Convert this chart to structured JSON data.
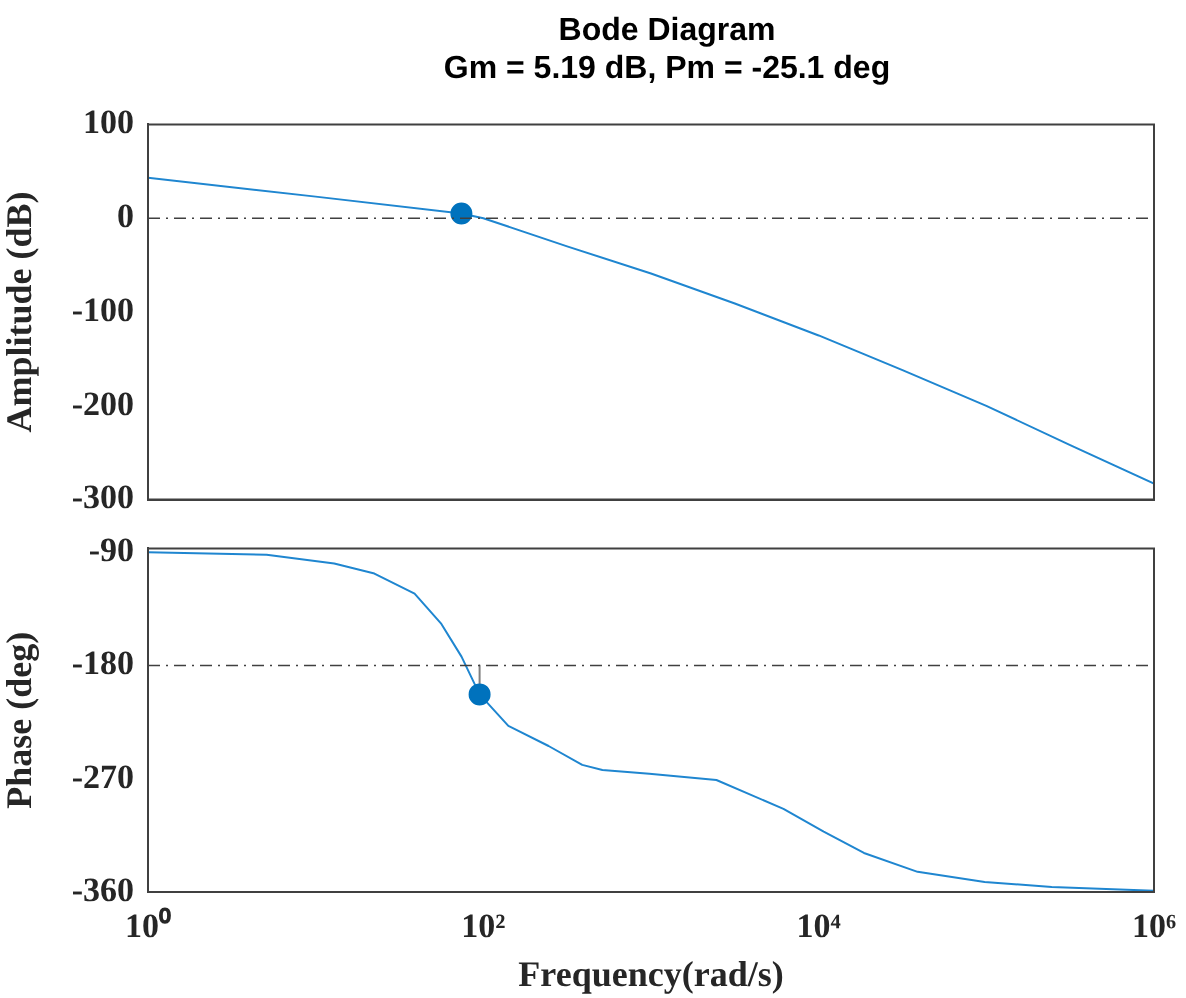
{
  "chart_data": [
    {
      "type": "line",
      "title": "Bode Diagram",
      "subtitle": "Gm = 5.19 dB, Pm = -25.1 deg",
      "ylabel": "Amplitude (dB)",
      "log": "x",
      "grid": false,
      "legend": false,
      "tick_labels": "y",
      "xlim": [
        1,
        1000000
      ],
      "xticks": [
        {
          "value": 1,
          "label": null
        },
        {
          "value": 100,
          "label": null
        },
        {
          "value": 10000,
          "label": null
        },
        {
          "value": 1000000,
          "label": null
        }
      ],
      "ylim": [
        -300,
        100
      ],
      "yticks": [
        -300,
        -200,
        -100,
        0,
        100
      ],
      "series": [
        {
          "color": "#1f86d0",
          "marker": "none",
          "x": [
            1,
            10,
            74,
            100,
            316,
            1000,
            3162,
            10000,
            31623,
            100000,
            316228,
            1000000
          ],
          "values": [
            43,
            23,
            5,
            0,
            -30,
            -59,
            -91,
            -125,
            -162,
            -200,
            -242,
            -283
          ]
        },
        {
          "type": "scatter",
          "color": "#0072bd",
          "marker": "circle",
          "x": [
            74
          ],
          "values": [
            5
          ]
        }
      ],
      "ref_lines": [
        {
          "axis": "y",
          "value": 0,
          "color": "#404040",
          "line_style": "dashed"
        }
      ]
    },
    {
      "type": "line",
      "xlabel": "Frequency(rad/s)",
      "ylabel": "Phase (deg)",
      "log": "x",
      "grid": false,
      "legend": false,
      "xlim": [
        1,
        1000000
      ],
      "xticks": [
        {
          "value": 1,
          "label": "10⁰"
        },
        {
          "value": 100,
          "label": "10²"
        },
        {
          "value": 10000,
          "label": "10⁴"
        },
        {
          "value": 1000000,
          "label": "10⁶"
        }
      ],
      "ylim": [
        -360,
        -87
      ],
      "yticks": [
        -360,
        -270,
        -180,
        -90
      ],
      "series": [
        {
          "color": "#1f86d0",
          "marker": "none",
          "x": [
            1,
            5.1,
            12.9,
            22.4,
            38.9,
            56.2,
            74.1,
            95,
            141,
            245,
            389,
            513,
            977,
            2455,
            6166,
            10715,
            18621,
            38905,
            97724,
            245471,
            1000000
          ],
          "values": [
            -90,
            -92,
            -99,
            -107,
            -123,
            -147,
            -173,
            -203,
            -228,
            -244,
            -259,
            -263,
            -266,
            -271,
            -294,
            -312,
            -329,
            -344,
            -352,
            -356,
            -359
          ]
        },
        {
          "type": "line",
          "color": "#808080",
          "marker": "none",
          "x": [
            95,
            95
          ],
          "values": [
            -180,
            -203
          ]
        },
        {
          "type": "scatter",
          "color": "#0072bd",
          "marker": "circle",
          "x": [
            95
          ],
          "values": [
            -203
          ]
        }
      ],
      "ref_lines": [
        {
          "axis": "y",
          "value": -180,
          "color": "#404040",
          "line_style": "dashed"
        }
      ]
    }
  ]
}
